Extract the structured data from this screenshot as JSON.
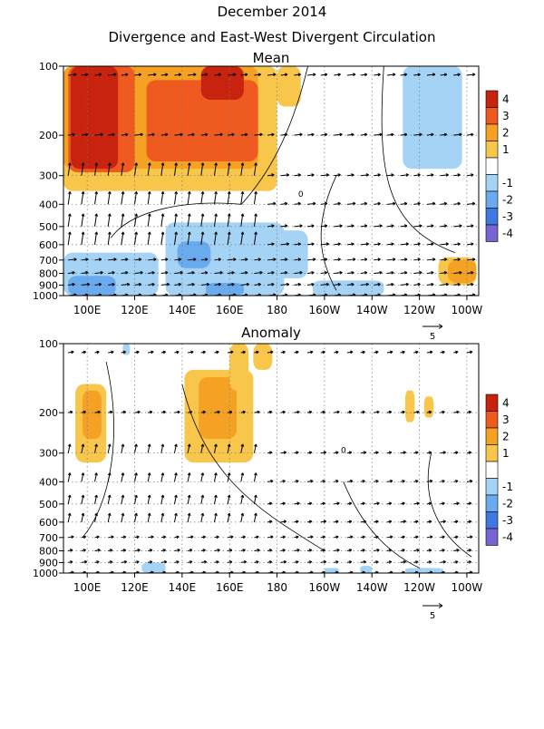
{
  "title": "December 2014",
  "subtitle": "Divergence and East-West Divergent Circulation",
  "colors": {
    "4": "#c8230f",
    "3": "#ee5a1f",
    "2": "#f5a123",
    "1": "#f9c64c",
    "0": "#ffffff",
    "-1": "#a4d3f5",
    "-2": "#6aabef",
    "-3": "#3f79e0",
    "-4": "#7a64d4"
  },
  "legend_labels": [
    "4",
    "3",
    "2",
    "1",
    "-1",
    "-2",
    "-3",
    "-4"
  ],
  "zero_contour_label": "0",
  "chart_data": [
    {
      "type": "heatmap",
      "title": "Mean",
      "x_ticks": [
        "100E",
        "120E",
        "140E",
        "160E",
        "180",
        "160W",
        "140W",
        "120W",
        "100W"
      ],
      "x_tick_values": [
        100,
        120,
        140,
        160,
        180,
        200,
        220,
        240,
        260
      ],
      "xlim": [
        90,
        265
      ],
      "y_ticks": [
        "100",
        "200",
        "300",
        "400",
        "500",
        "600",
        "700",
        "800",
        "900",
        "1000"
      ],
      "y_tick_values": [
        100,
        200,
        300,
        400,
        500,
        600,
        700,
        800,
        900,
        1000
      ],
      "ylim": [
        100,
        1000
      ],
      "y_scale": "log",
      "vector_reference_label": "5",
      "regions": [
        {
          "level": 1,
          "lon": [
            90,
            180
          ],
          "p": [
            100,
            350
          ]
        },
        {
          "level": 1,
          "lon": [
            180,
            190
          ],
          "p": [
            100,
            150
          ]
        },
        {
          "level": 2,
          "lon": [
            90,
            172
          ],
          "p": [
            100,
            280
          ]
        },
        {
          "level": 3,
          "lon": [
            92,
            120
          ],
          "p": [
            100,
            290
          ]
        },
        {
          "level": 3,
          "lon": [
            125,
            172
          ],
          "p": [
            115,
            260
          ]
        },
        {
          "level": 4,
          "lon": [
            93,
            113
          ],
          "p": [
            100,
            280
          ]
        },
        {
          "level": 4,
          "lon": [
            148,
            166
          ],
          "p": [
            100,
            140
          ]
        },
        {
          "level": -1,
          "lon": [
            233,
            258
          ],
          "p": [
            100,
            280
          ]
        },
        {
          "level": -1,
          "lon": [
            90,
            130
          ],
          "p": [
            650,
            1000
          ]
        },
        {
          "level": -1,
          "lon": [
            133,
            183
          ],
          "p": [
            480,
            1000
          ]
        },
        {
          "level": -1,
          "lon": [
            178,
            193
          ],
          "p": [
            520,
            840
          ]
        },
        {
          "level": -1,
          "lon": [
            195,
            225
          ],
          "p": [
            860,
            1000
          ]
        },
        {
          "level": -2,
          "lon": [
            92,
            112
          ],
          "p": [
            820,
            1000
          ]
        },
        {
          "level": -2,
          "lon": [
            138,
            152
          ],
          "p": [
            580,
            760
          ]
        },
        {
          "level": -2,
          "lon": [
            150,
            166
          ],
          "p": [
            880,
            1000
          ]
        },
        {
          "level": 1,
          "lon": [
            248,
            264
          ],
          "p": [
            680,
            900
          ]
        },
        {
          "level": 2,
          "lon": [
            252,
            264
          ],
          "p": [
            700,
            880
          ]
        }
      ]
    },
    {
      "type": "heatmap",
      "title": "Anomaly",
      "x_ticks": [
        "100E",
        "120E",
        "140E",
        "160E",
        "180",
        "160W",
        "140W",
        "120W",
        "100W"
      ],
      "x_tick_values": [
        100,
        120,
        140,
        160,
        180,
        200,
        220,
        240,
        260
      ],
      "xlim": [
        90,
        265
      ],
      "y_ticks": [
        "100",
        "200",
        "300",
        "400",
        "500",
        "600",
        "700",
        "800",
        "900",
        "1000"
      ],
      "y_tick_values": [
        100,
        200,
        300,
        400,
        500,
        600,
        700,
        800,
        900,
        1000
      ],
      "ylim": [
        100,
        1000
      ],
      "y_scale": "log",
      "vector_reference_label": "5",
      "regions": [
        {
          "level": 1,
          "lon": [
            95,
            108
          ],
          "p": [
            150,
            330
          ]
        },
        {
          "level": 2,
          "lon": [
            98,
            106
          ],
          "p": [
            160,
            260
          ]
        },
        {
          "level": 1,
          "lon": [
            141,
            170
          ],
          "p": [
            130,
            330
          ]
        },
        {
          "level": 2,
          "lon": [
            147,
            163
          ],
          "p": [
            140,
            260
          ]
        },
        {
          "level": 1,
          "lon": [
            160,
            168
          ],
          "p": [
            100,
            160
          ]
        },
        {
          "level": 1,
          "lon": [
            170,
            178
          ],
          "p": [
            100,
            130
          ]
        },
        {
          "level": 1,
          "lon": [
            234,
            238
          ],
          "p": [
            160,
            220
          ]
        },
        {
          "level": 1,
          "lon": [
            242,
            246
          ],
          "p": [
            170,
            210
          ]
        },
        {
          "level": -1,
          "lon": [
            115,
            118
          ],
          "p": [
            100,
            112
          ]
        },
        {
          "level": -1,
          "lon": [
            123,
            133
          ],
          "p": [
            900,
            1000
          ]
        },
        {
          "level": -1,
          "lon": [
            200,
            206
          ],
          "p": [
            950,
            1000
          ]
        },
        {
          "level": -1,
          "lon": [
            215,
            220
          ],
          "p": [
            930,
            1000
          ]
        },
        {
          "level": -1,
          "lon": [
            234,
            250
          ],
          "p": [
            950,
            1000
          ]
        }
      ]
    }
  ]
}
